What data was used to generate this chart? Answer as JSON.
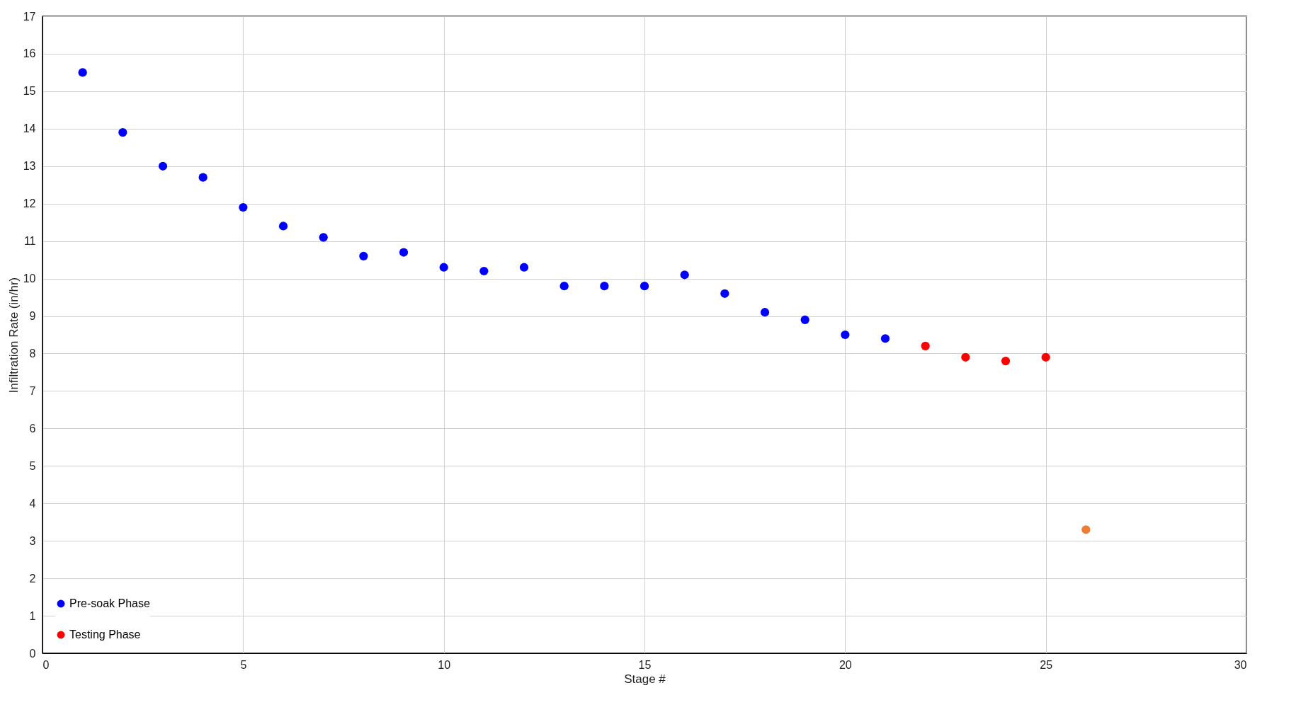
{
  "chart_data": {
    "type": "scatter",
    "xlabel": "Stage #",
    "ylabel": "Infiltration Rate (in/hr)",
    "xlim": [
      0,
      30
    ],
    "xticks": [
      0,
      5,
      10,
      15,
      20,
      25,
      30
    ],
    "ylim": [
      0,
      17
    ],
    "yticks": [
      0,
      1,
      2,
      3,
      4,
      5,
      6,
      7,
      8,
      9,
      10,
      11,
      12,
      13,
      14,
      15,
      16,
      17
    ],
    "grid": true,
    "legend": "bottom left",
    "marker": "circle",
    "series": [
      {
        "name": "Pre-soak Phase",
        "color": "#0000ff",
        "x": [
          1,
          2,
          3,
          4,
          5,
          6,
          7,
          8,
          9,
          10,
          11,
          12,
          13,
          14,
          15,
          16,
          17,
          18,
          19,
          20,
          21
        ],
        "values": [
          15.5,
          13.9,
          13.0,
          12.7,
          11.9,
          11.4,
          11.1,
          10.6,
          10.7,
          10.3,
          10.2,
          10.3,
          9.8,
          9.8,
          9.8,
          10.1,
          9.6,
          9.1,
          8.9,
          8.5,
          8.4
        ]
      },
      {
        "name": "Testing Phase",
        "color": "#ff0000",
        "x": [
          22,
          23,
          24,
          25
        ],
        "values": [
          8.2,
          7.9,
          7.8,
          7.9
        ]
      },
      {
        "color": "#ed7d31",
        "x": [
          26
        ],
        "values": [
          3.3
        ]
      }
    ]
  }
}
